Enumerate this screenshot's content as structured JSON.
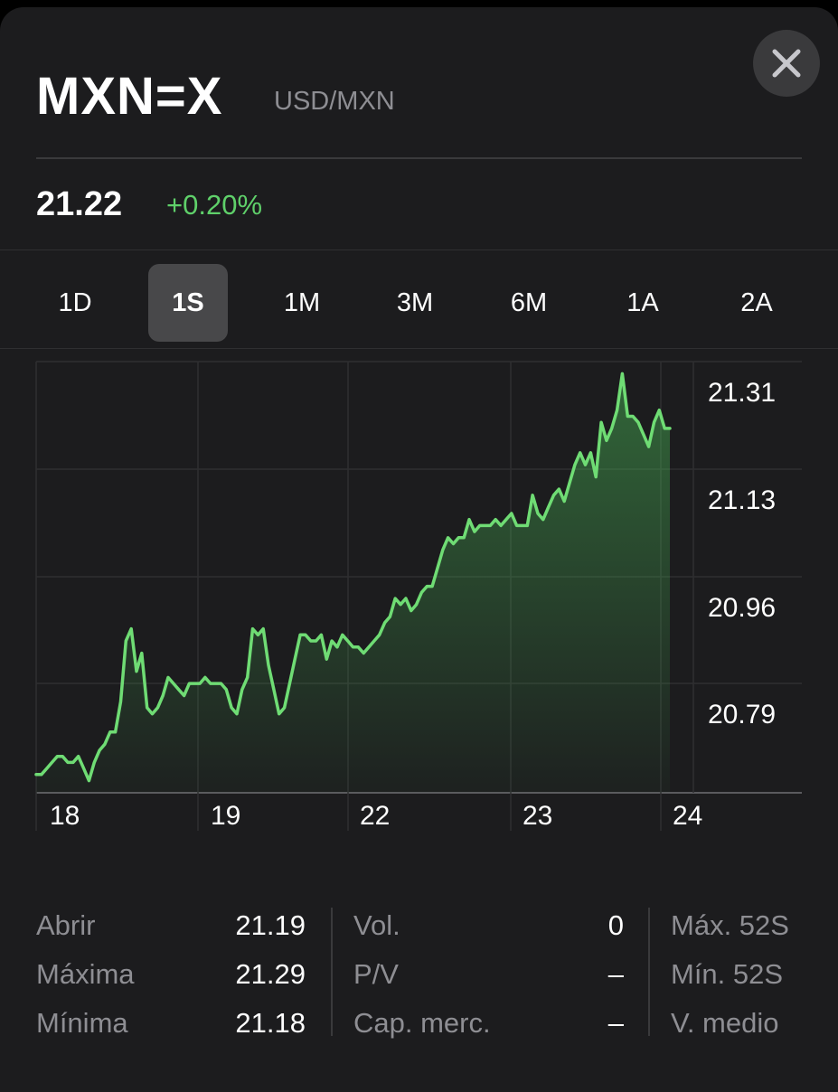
{
  "header": {
    "symbol": "MXN=X",
    "pair": "USD/MXN",
    "close_icon": "close-x-icon"
  },
  "quote": {
    "price": "21.22",
    "change": "+0.20%",
    "change_color": "#5fd06a"
  },
  "ranges": [
    {
      "label": "1D",
      "active": false
    },
    {
      "label": "1S",
      "active": true
    },
    {
      "label": "1M",
      "active": false
    },
    {
      "label": "3M",
      "active": false
    },
    {
      "label": "6M",
      "active": false
    },
    {
      "label": "1A",
      "active": false
    },
    {
      "label": "2A",
      "active": false
    }
  ],
  "chart_data": {
    "type": "area",
    "x_tick_labels": [
      "18",
      "19",
      "22",
      "23",
      "24"
    ],
    "y_tick_labels": [
      "21.31",
      "21.13",
      "20.96",
      "20.79"
    ],
    "ylim": [
      20.67,
      21.38
    ],
    "grid": true,
    "line_color": "#6fdc74",
    "values": [
      20.7,
      20.7,
      20.71,
      20.72,
      20.73,
      20.73,
      20.72,
      20.72,
      20.73,
      20.71,
      20.69,
      20.72,
      20.74,
      20.75,
      20.77,
      20.77,
      20.82,
      20.92,
      20.94,
      20.87,
      20.9,
      20.81,
      20.8,
      20.81,
      20.83,
      20.86,
      20.85,
      20.84,
      20.83,
      20.85,
      20.85,
      20.85,
      20.86,
      20.85,
      20.85,
      20.85,
      20.84,
      20.81,
      20.8,
      20.84,
      20.86,
      20.94,
      20.93,
      20.94,
      20.88,
      20.84,
      20.8,
      20.81,
      20.85,
      20.89,
      20.93,
      20.93,
      20.92,
      20.92,
      20.93,
      20.89,
      20.92,
      20.91,
      20.93,
      20.92,
      20.91,
      20.91,
      20.9,
      20.91,
      20.92,
      20.93,
      20.95,
      20.96,
      20.99,
      20.98,
      20.99,
      20.97,
      20.98,
      21.0,
      21.01,
      21.01,
      21.04,
      21.07,
      21.09,
      21.08,
      21.09,
      21.09,
      21.12,
      21.1,
      21.11,
      21.11,
      21.11,
      21.12,
      21.11,
      21.12,
      21.13,
      21.11,
      21.11,
      21.11,
      21.16,
      21.13,
      21.12,
      21.14,
      21.16,
      21.17,
      21.15,
      21.18,
      21.21,
      21.23,
      21.21,
      21.23,
      21.19,
      21.28,
      21.25,
      21.27,
      21.3,
      21.36,
      21.29,
      21.29,
      21.28,
      21.26,
      21.24,
      21.28,
      21.3,
      21.27,
      21.27
    ]
  },
  "stats": {
    "col1": [
      {
        "label": "Abrir",
        "value": "21.19"
      },
      {
        "label": "Máxima",
        "value": "21.29"
      },
      {
        "label": "Mínima",
        "value": "21.18"
      }
    ],
    "col2": [
      {
        "label": "Vol.",
        "value": "0"
      },
      {
        "label": "P/V",
        "value": "–"
      },
      {
        "label": "Cap. merc.",
        "value": "–"
      }
    ],
    "col3": [
      {
        "label": "Máx. 52S"
      },
      {
        "label": "Mín. 52S"
      },
      {
        "label": "V. medio"
      }
    ]
  }
}
